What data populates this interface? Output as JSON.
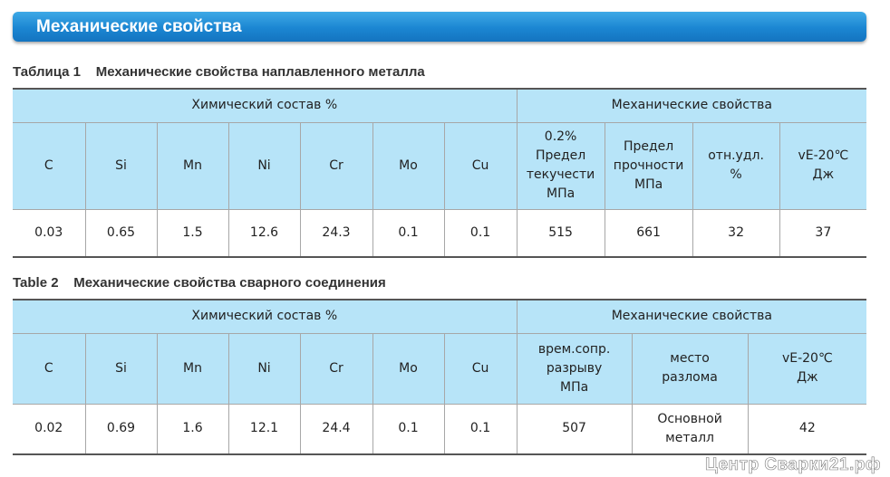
{
  "header": {
    "title": "Механические свойства"
  },
  "table1": {
    "caption": "Таблица 1    Механические свойства наплавленного металла",
    "group_chem": "Химический состав  %",
    "group_mech": "Механические свойства",
    "cols": [
      "C",
      "Si",
      "Mn",
      "Ni",
      "Cr",
      "Mo",
      "Cu"
    ],
    "mech_cols": [
      "0.2%\nПредел\nтекучести\nМПа",
      "Предел\nпрочности\nМПа",
      "отн.удл.\n%",
      "vE-20℃\nДж"
    ],
    "row": [
      "0.03",
      "0.65",
      "1.5",
      "12.6",
      "24.3",
      "0.1",
      "0.1",
      "515",
      "661",
      "32",
      "37"
    ]
  },
  "table2": {
    "caption": "Table 2    Механические свойства сварного соединения",
    "group_chem": "Химический состав %",
    "group_mech": "Механические свойства",
    "cols": [
      "C",
      "Si",
      "Mn",
      "Ni",
      "Cr",
      "Mo",
      "Cu"
    ],
    "mech_cols": [
      "врем.сопр.\nразрыву\nМПа",
      "место\nразлома",
      "vE-20℃\nДж"
    ],
    "row": [
      "0.02",
      "0.69",
      "1.6",
      "12.1",
      "24.4",
      "0.1",
      "0.1",
      "507",
      "Основной\nметалл",
      "42"
    ]
  },
  "watermark": "Центр Сварки21.рф"
}
